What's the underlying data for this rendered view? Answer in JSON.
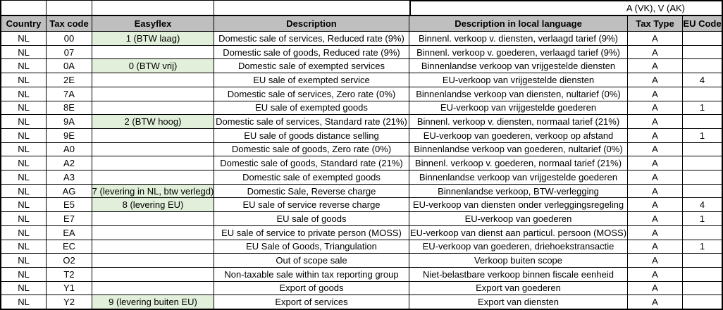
{
  "sheet": {
    "top_row": {
      "note": "A (VK), V (AK)"
    },
    "columns": [
      {
        "label": "Country"
      },
      {
        "label": "Tax code"
      },
      {
        "label": "Easyflex"
      },
      {
        "label": "Description"
      },
      {
        "label": "Description in local language"
      },
      {
        "label": "Tax Type"
      },
      {
        "label": "EU Code"
      }
    ],
    "colors": {
      "header_bg": "#bfbfbf",
      "easyflex_highlight_bg": "#e2efda",
      "grid_border": "#000000"
    },
    "rows": [
      {
        "country": "NL",
        "tax_code": "00",
        "easyflex": "1 (BTW laag)",
        "easyflex_highlight": true,
        "description": "Domestic sale of services, Reduced rate (9%)",
        "local_description": "Binnenl. verkoop v. diensten, verlaagd tarief (9%)",
        "tax_type": "A",
        "eu_code": ""
      },
      {
        "country": "NL",
        "tax_code": "07",
        "easyflex": "",
        "easyflex_highlight": false,
        "description": "Domestic sale of goods, Reduced rate (9%)",
        "local_description": "Binnenl. verkoop v. goederen, verlaagd tarief (9%)",
        "tax_type": "A",
        "eu_code": ""
      },
      {
        "country": "NL",
        "tax_code": "0A",
        "easyflex": "0 (BTW vrij)",
        "easyflex_highlight": true,
        "description": "Domestic sale of exempted services",
        "local_description": "Binnenlandse verkoop van vrijgestelde diensten",
        "tax_type": "A",
        "eu_code": ""
      },
      {
        "country": "NL",
        "tax_code": "2E",
        "easyflex": "",
        "easyflex_highlight": false,
        "description": "EU sale of exempted service",
        "local_description": "EU-verkoop van vrijgestelde diensten",
        "tax_type": "A",
        "eu_code": "4"
      },
      {
        "country": "NL",
        "tax_code": "7A",
        "easyflex": "",
        "easyflex_highlight": false,
        "description": "Domestic sale of services, Zero rate (0%)",
        "local_description": "Binnenlandse verkoop van diensten, nultarief (0%)",
        "tax_type": "A",
        "eu_code": ""
      },
      {
        "country": "NL",
        "tax_code": "8E",
        "easyflex": "",
        "easyflex_highlight": false,
        "description": "EU sale of exempted goods",
        "local_description": "EU-verkoop van vrijgestelde goederen",
        "tax_type": "A",
        "eu_code": "1"
      },
      {
        "country": "NL",
        "tax_code": "9A",
        "easyflex": "2 (BTW hoog)",
        "easyflex_highlight": true,
        "description": "Domestic sale of services, Standard rate (21%)",
        "local_description": "Binnenl. verkoop v. diensten, normaal tarief (21%)",
        "tax_type": "A",
        "eu_code": ""
      },
      {
        "country": "NL",
        "tax_code": "9E",
        "easyflex": "",
        "easyflex_highlight": false,
        "description": "EU sale of goods distance selling",
        "local_description": "EU-verkoop van goederen, verkoop op afstand",
        "tax_type": "A",
        "eu_code": "1"
      },
      {
        "country": "NL",
        "tax_code": "A0",
        "easyflex": "",
        "easyflex_highlight": false,
        "description": "Domestic sale of goods, Zero rate (0%)",
        "local_description": "Binnenlandse verkoop van goederen, nultarief (0%)",
        "tax_type": "A",
        "eu_code": ""
      },
      {
        "country": "NL",
        "tax_code": "A2",
        "easyflex": "",
        "easyflex_highlight": false,
        "description": "Domestic sale of goods, Standard rate (21%)",
        "local_description": "Binnenl. verkoop v. goederen, normaal tarief (21%)",
        "tax_type": "A",
        "eu_code": ""
      },
      {
        "country": "NL",
        "tax_code": "A3",
        "easyflex": "",
        "easyflex_highlight": false,
        "description": "Domestic sale of exempted goods",
        "local_description": "Binnenlandse verkoop van vrijgestelde goederen",
        "tax_type": "A",
        "eu_code": ""
      },
      {
        "country": "NL",
        "tax_code": "AG",
        "easyflex": "7 (levering in NL, btw verlegd)",
        "easyflex_highlight": true,
        "description": "Domestic Sale, Reverse charge",
        "local_description": "Binnenlandse verkoop, BTW-verlegging",
        "tax_type": "A",
        "eu_code": ""
      },
      {
        "country": "NL",
        "tax_code": "E5",
        "easyflex": "8 (levering EU)",
        "easyflex_highlight": true,
        "description": "EU sale of service reverse charge",
        "local_description": "EU-verkoop van diensten onder verleggingsregeling",
        "tax_type": "A",
        "eu_code": "4"
      },
      {
        "country": "NL",
        "tax_code": "E7",
        "easyflex": "",
        "easyflex_highlight": false,
        "description": "EU sale of goods",
        "local_description": "EU-verkoop van goederen",
        "tax_type": "A",
        "eu_code": "1"
      },
      {
        "country": "NL",
        "tax_code": "EA",
        "easyflex": "",
        "easyflex_highlight": false,
        "description": "EU sale of service to private person (MOSS)",
        "local_description": "EU-verkoop van dienst aan particul. persoon (MOSS)",
        "tax_type": "A",
        "eu_code": ""
      },
      {
        "country": "NL",
        "tax_code": "EC",
        "easyflex": "",
        "easyflex_highlight": false,
        "description": "EU Sale of Goods, Triangulation",
        "local_description": "EU-verkoop van goederen, driehoekstransactie",
        "tax_type": "A",
        "eu_code": "1"
      },
      {
        "country": "NL",
        "tax_code": "O2",
        "easyflex": "",
        "easyflex_highlight": false,
        "description": "Out of scope sale",
        "local_description": "Verkoop buiten scope",
        "tax_type": "A",
        "eu_code": ""
      },
      {
        "country": "NL",
        "tax_code": "T2",
        "easyflex": "",
        "easyflex_highlight": false,
        "description": "Non-taxable sale within tax reporting group",
        "local_description": "Niet-belastbare verkoop binnen fiscale eenheid",
        "tax_type": "A",
        "eu_code": ""
      },
      {
        "country": "NL",
        "tax_code": "Y1",
        "easyflex": "",
        "easyflex_highlight": false,
        "description": "Export of goods",
        "local_description": "Export van goederen",
        "tax_type": "A",
        "eu_code": ""
      },
      {
        "country": "NL",
        "tax_code": "Y2",
        "easyflex": "9 (levering buiten EU)",
        "easyflex_highlight": true,
        "description": "Export of services",
        "local_description": "Export van diensten",
        "tax_type": "A",
        "eu_code": ""
      }
    ]
  }
}
